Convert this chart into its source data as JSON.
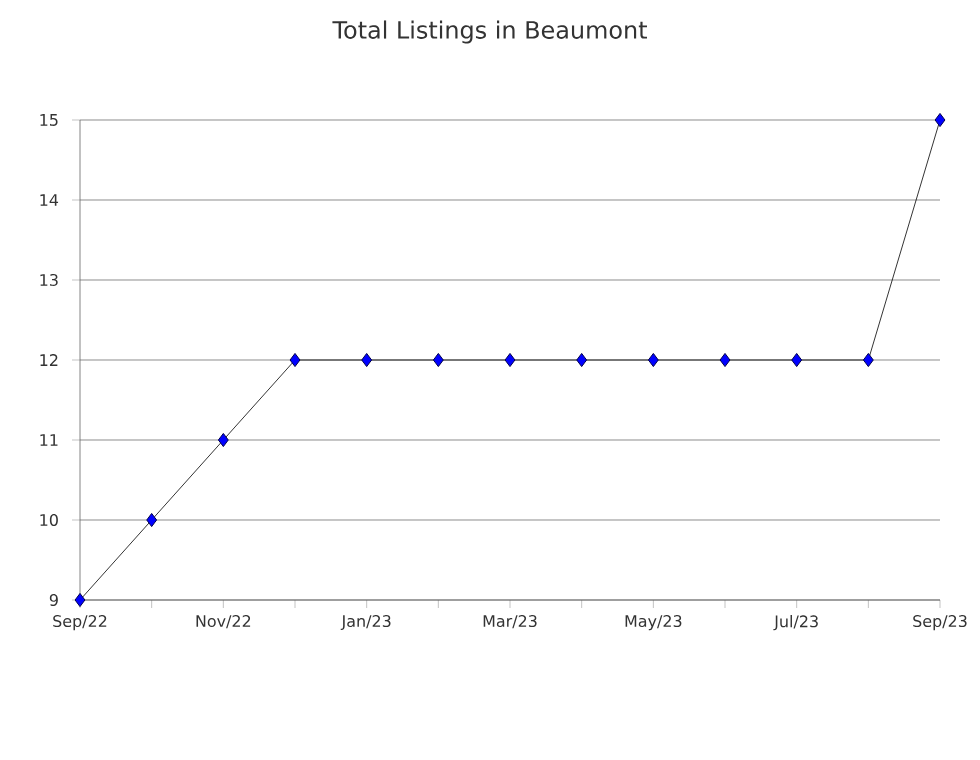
{
  "chart_data": {
    "type": "line",
    "title": "Total Listings in Beaumont",
    "categories": [
      "Sep/22",
      null,
      "Nov/22",
      null,
      "Jan/23",
      null,
      "Mar/23",
      null,
      "May/23",
      null,
      "Jul/23",
      null,
      "Sep/23"
    ],
    "series": [
      {
        "color": "#0000ff",
        "values": [
          9,
          10,
          11,
          12,
          12,
          12,
          12,
          12,
          12,
          12,
          12,
          12,
          15
        ]
      }
    ],
    "ylim": [
      9,
      15
    ],
    "yticks": [
      9,
      10,
      11,
      12,
      13,
      14,
      15
    ],
    "grid": "y",
    "marker": "diamond",
    "line_style": "solid"
  }
}
